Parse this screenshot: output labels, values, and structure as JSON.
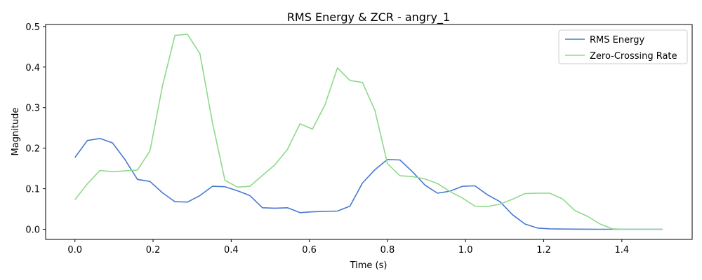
{
  "chart_data": {
    "type": "line",
    "title": "RMS Energy & ZCR - angry_1",
    "xlabel": "Time (s)",
    "ylabel": "Magnitude",
    "xlim": [
      -0.075,
      1.58
    ],
    "ylim": [
      -0.025,
      0.505
    ],
    "xticks": [
      0.0,
      0.2,
      0.4,
      0.6,
      0.8,
      1.0,
      1.2,
      1.4
    ],
    "xtick_labels": [
      "0.0",
      "0.2",
      "0.4",
      "0.6",
      "0.8",
      "1.0",
      "1.2",
      "1.4"
    ],
    "yticks": [
      0.0,
      0.1,
      0.2,
      0.3,
      0.4,
      0.5
    ],
    "ytick_labels": [
      "0.0",
      "0.1",
      "0.2",
      "0.3",
      "0.4",
      "0.5"
    ],
    "grid": false,
    "legend_position": "top-right",
    "x": [
      0.0,
      0.032,
      0.064,
      0.096,
      0.128,
      0.16,
      0.192,
      0.224,
      0.256,
      0.288,
      0.32,
      0.352,
      0.384,
      0.416,
      0.448,
      0.48,
      0.512,
      0.544,
      0.576,
      0.608,
      0.64,
      0.672,
      0.704,
      0.736,
      0.768,
      0.8,
      0.832,
      0.864,
      0.896,
      0.928,
      0.96,
      0.992,
      1.024,
      1.056,
      1.088,
      1.12,
      1.152,
      1.184,
      1.216,
      1.248,
      1.28,
      1.312,
      1.344,
      1.376,
      1.408,
      1.44,
      1.472,
      1.504
    ],
    "series": [
      {
        "name": "RMS Energy",
        "color": "#4878cf",
        "values": [
          0.177,
          0.219,
          0.224,
          0.213,
          0.172,
          0.123,
          0.118,
          0.09,
          0.068,
          0.067,
          0.083,
          0.106,
          0.105,
          0.095,
          0.083,
          0.053,
          0.052,
          0.053,
          0.041,
          0.043,
          0.044,
          0.045,
          0.057,
          0.114,
          0.147,
          0.172,
          0.171,
          0.142,
          0.109,
          0.089,
          0.094,
          0.106,
          0.107,
          0.085,
          0.068,
          0.036,
          0.013,
          0.003,
          0.001,
          0.0005,
          0.0003,
          0.0002,
          0.0001,
          0.0001,
          0.0001,
          0.0001,
          0.0001,
          0.0001
        ]
      },
      {
        "name": "Zero-Crossing Rate",
        "color": "#8fd98a",
        "values": [
          0.073,
          0.112,
          0.145,
          0.142,
          0.144,
          0.146,
          0.193,
          0.353,
          0.478,
          0.481,
          0.433,
          0.263,
          0.121,
          0.104,
          0.106,
          0.133,
          0.159,
          0.197,
          0.26,
          0.247,
          0.307,
          0.398,
          0.367,
          0.362,
          0.293,
          0.162,
          0.132,
          0.13,
          0.124,
          0.113,
          0.093,
          0.077,
          0.057,
          0.056,
          0.062,
          0.074,
          0.088,
          0.089,
          0.089,
          0.075,
          0.046,
          0.032,
          0.013,
          0.001,
          0.0,
          0.0,
          0.0,
          0.0
        ]
      }
    ]
  }
}
